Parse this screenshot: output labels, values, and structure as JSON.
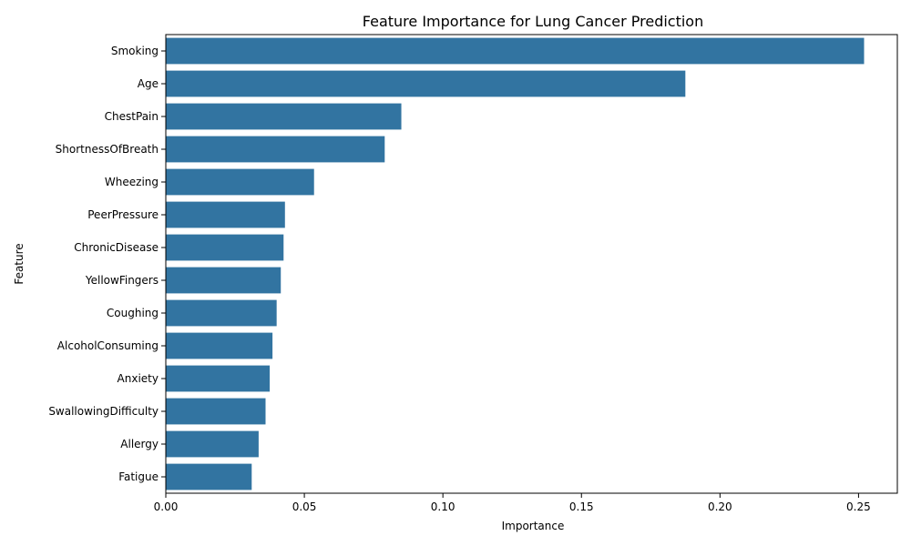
{
  "chart_data": {
    "type": "bar",
    "orientation": "horizontal",
    "title": "Feature Importance for Lung Cancer Prediction",
    "xlabel": "Importance",
    "ylabel": "Feature",
    "categories": [
      "Smoking",
      "Age",
      "ChestPain",
      "ShortnessOfBreath",
      "Wheezing",
      "PeerPressure",
      "ChronicDisease",
      "YellowFingers",
      "Coughing",
      "AlcoholConsuming",
      "Anxiety",
      "SwallowingDifficulty",
      "Allergy",
      "Fatigue"
    ],
    "values": [
      0.252,
      0.1875,
      0.085,
      0.079,
      0.0535,
      0.043,
      0.0425,
      0.0415,
      0.04,
      0.0385,
      0.0375,
      0.036,
      0.0335,
      0.031
    ],
    "xlim": [
      0,
      0.264
    ],
    "xticks": [
      0.0,
      0.05,
      0.1,
      0.15,
      0.2,
      0.25
    ],
    "xtick_labels": [
      "0.00",
      "0.05",
      "0.10",
      "0.15",
      "0.20",
      "0.25"
    ],
    "grid": false,
    "bar_color": "#3274a1"
  }
}
